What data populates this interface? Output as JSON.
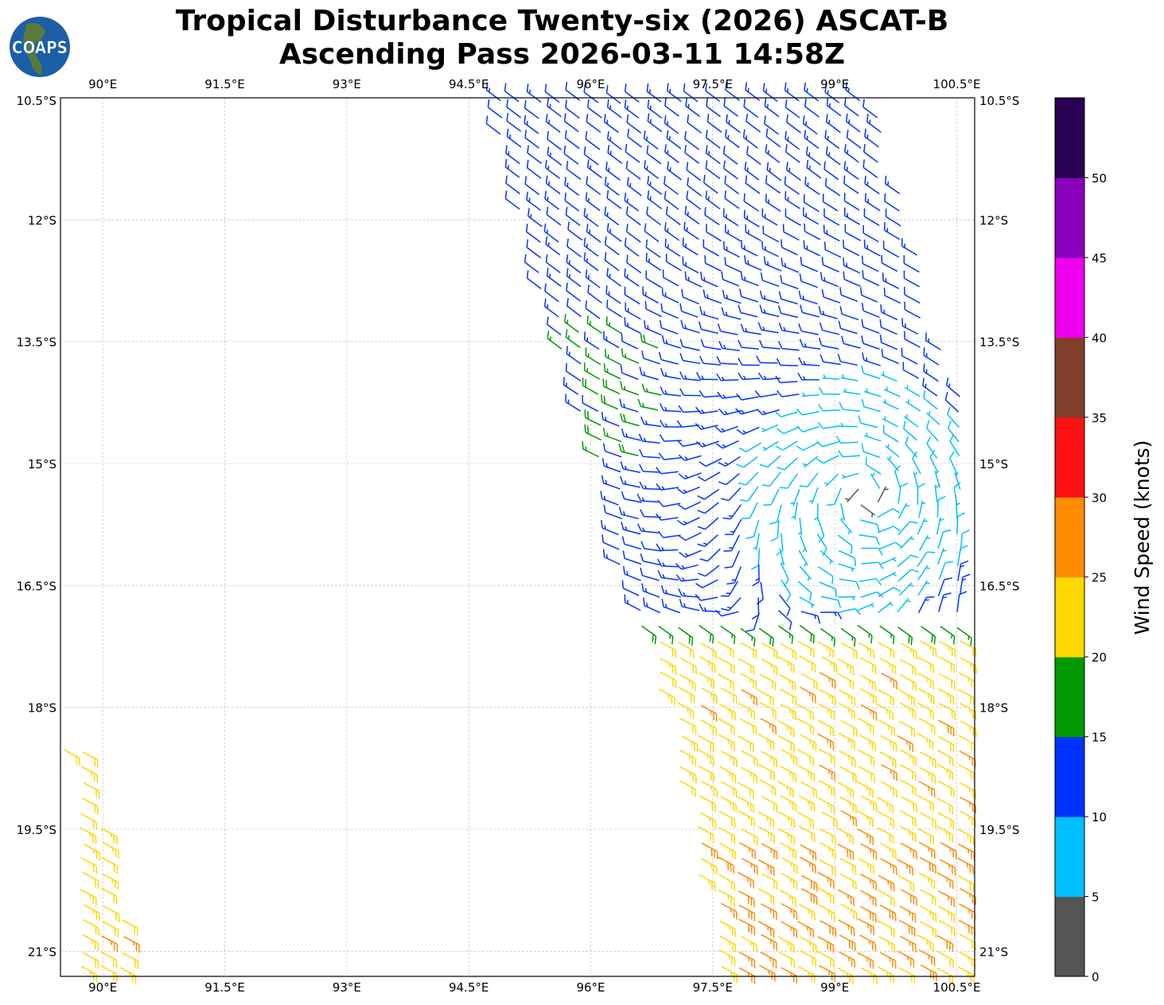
{
  "header": {
    "title_line1": "Tropical Disturbance Twenty-six (2026) ASCAT-B",
    "title_line2": "Ascending Pass 2026-03-11 14:58Z",
    "logo_text": "COAPS"
  },
  "chart_data": {
    "type": "wind-barbs",
    "lon_ticks": [
      "90°E",
      "91.5°E",
      "93°E",
      "94.5°E",
      "96°E",
      "97.5°E",
      "99°E",
      "100.5°E"
    ],
    "lon_values": [
      90,
      91.5,
      93,
      94.5,
      96,
      97.5,
      99,
      100.5
    ],
    "lat_ticks": [
      "10.5°S",
      "12°S",
      "13.5°S",
      "15°S",
      "16.5°S",
      "18°S",
      "19.5°S",
      "21°S"
    ],
    "lat_values": [
      -10.5,
      -12,
      -13.5,
      -15,
      -16.5,
      -18,
      -19.5,
      -21
    ],
    "extent": {
      "lon_min": 89.48,
      "lon_max": 100.72,
      "lat_max": -10.5,
      "lat_min": -21.31
    },
    "grid": true,
    "circulation_center": {
      "lon": 99.4,
      "lat": -15.4
    },
    "colorbar": {
      "label": "Wind Speed (knots)",
      "ticks": [
        "0",
        "5",
        "10",
        "15",
        "20",
        "25",
        "30",
        "35",
        "40",
        "45",
        "50"
      ],
      "range": [
        0,
        55
      ],
      "colors": [
        "#555555",
        "#00bfff",
        "#0033ff",
        "#009900",
        "#ffd700",
        "#ff8c00",
        "#ff1010",
        "#7f3f2a",
        "#ee00ee",
        "#8800bb",
        "#2a0055"
      ]
    }
  }
}
